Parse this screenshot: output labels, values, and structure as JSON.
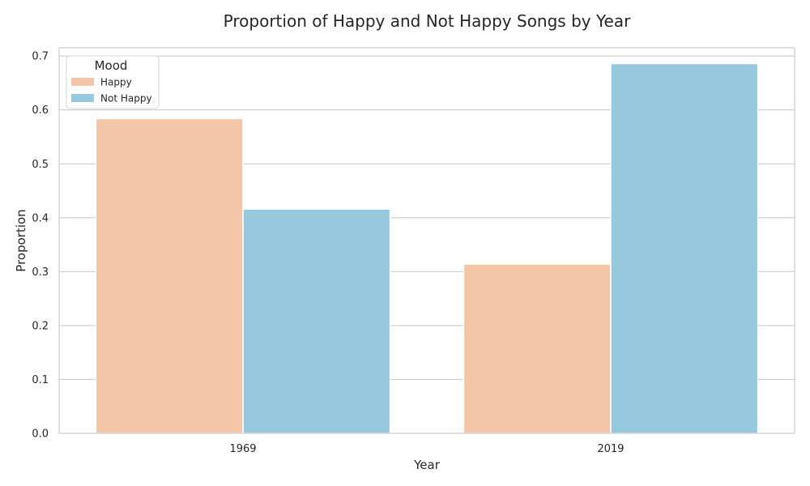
{
  "chart_data": {
    "type": "bar",
    "title": "Proportion of Happy and Not Happy Songs by Year",
    "xlabel": "Year",
    "ylabel": "Proportion",
    "categories": [
      "1969",
      "2019"
    ],
    "series": [
      {
        "name": "Happy",
        "values": [
          0.584,
          0.314
        ],
        "color": "#f2c6a7"
      },
      {
        "name": "Not Happy",
        "values": [
          0.416,
          0.686
        ],
        "color": "#96c9de"
      }
    ],
    "ylim": [
      0,
      0.7
    ],
    "yticks": [
      0.0,
      0.1,
      0.2,
      0.3,
      0.4,
      0.5,
      0.6,
      0.7
    ],
    "ytick_labels": [
      "0.0",
      "0.1",
      "0.2",
      "0.3",
      "0.4",
      "0.5",
      "0.6",
      "0.7"
    ],
    "grid": true,
    "legend": {
      "title": "Mood",
      "placement": "top-left"
    }
  }
}
